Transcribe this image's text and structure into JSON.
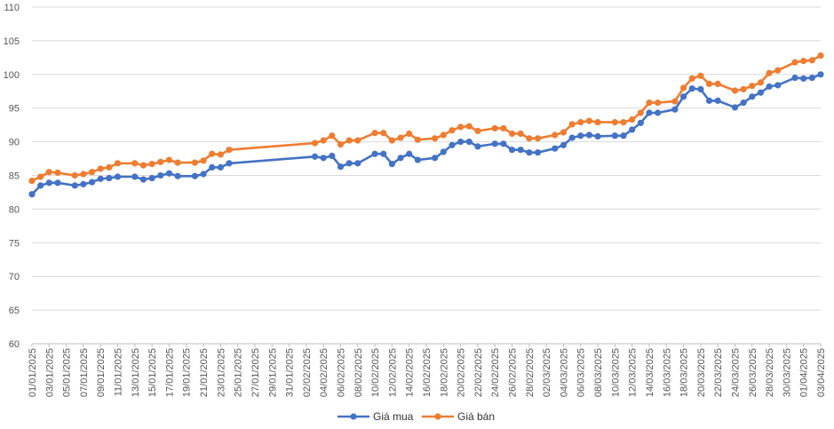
{
  "chart_data": {
    "type": "line",
    "title": "",
    "xlabel": "",
    "ylabel": "",
    "ylim": [
      60,
      110
    ],
    "y_ticks": [
      60,
      65,
      70,
      75,
      80,
      85,
      90,
      95,
      100,
      105,
      110
    ],
    "grid": true,
    "legend_position": "bottom-center",
    "x_tick_labels": [
      "01/01/2025",
      "03/01/2025",
      "05/01/2025",
      "07/01/2025",
      "09/01/2025",
      "11/01/2025",
      "13/01/2025",
      "15/01/2025",
      "17/01/2025",
      "19/01/2025",
      "21/01/2025",
      "23/01/2025",
      "25/01/2025",
      "27/01/2025",
      "29/01/2025",
      "31/01/2025",
      "02/02/2025",
      "04/02/2025",
      "06/02/2025",
      "08/02/2025",
      "10/02/2025",
      "12/02/2025",
      "14/02/2025",
      "16/02/2025",
      "18/02/2025",
      "20/02/2025",
      "22/02/2025",
      "24/02/2025",
      "26/02/2025",
      "28/02/2025",
      "02/03/2025",
      "04/03/2025",
      "06/03/2025",
      "08/03/2025",
      "10/03/2025",
      "12/03/2025",
      "14/03/2025",
      "16/03/2025",
      "18/03/2025",
      "20/03/2025",
      "22/03/2025",
      "24/03/2025",
      "26/03/2025",
      "28/03/2025",
      "30/03/2025",
      "01/04/2025",
      "03/04/2025"
    ],
    "x_day_count": 93,
    "series": [
      {
        "name": "Giá mua",
        "color": "#4472C4",
        "points": [
          [
            0,
            82.2
          ],
          [
            1,
            83.5
          ],
          [
            2,
            83.9
          ],
          [
            3,
            83.9
          ],
          [
            5,
            83.5
          ],
          [
            6,
            83.7
          ],
          [
            7,
            84.0
          ],
          [
            8,
            84.5
          ],
          [
            9,
            84.6
          ],
          [
            10,
            84.8
          ],
          [
            12,
            84.8
          ],
          [
            13,
            84.4
          ],
          [
            14,
            84.6
          ],
          [
            15,
            85.0
          ],
          [
            16,
            85.3
          ],
          [
            17,
            84.9
          ],
          [
            19,
            84.9
          ],
          [
            20,
            85.2
          ],
          [
            21,
            86.2
          ],
          [
            22,
            86.2
          ],
          [
            23,
            86.8
          ],
          [
            33,
            87.8
          ],
          [
            34,
            87.6
          ],
          [
            35,
            87.9
          ],
          [
            36,
            86.3
          ],
          [
            37,
            86.8
          ],
          [
            38,
            86.8
          ],
          [
            40,
            88.2
          ],
          [
            41,
            88.2
          ],
          [
            42,
            86.7
          ],
          [
            43,
            87.6
          ],
          [
            44,
            88.2
          ],
          [
            45,
            87.3
          ],
          [
            47,
            87.6
          ],
          [
            48,
            88.5
          ],
          [
            49,
            89.5
          ],
          [
            50,
            90.0
          ],
          [
            51,
            90.0
          ],
          [
            52,
            89.3
          ],
          [
            54,
            89.7
          ],
          [
            55,
            89.7
          ],
          [
            56,
            88.8
          ],
          [
            57,
            88.8
          ],
          [
            58,
            88.4
          ],
          [
            59,
            88.4
          ],
          [
            61,
            89.0
          ],
          [
            62,
            89.5
          ],
          [
            63,
            90.6
          ],
          [
            64,
            90.9
          ],
          [
            65,
            91.0
          ],
          [
            66,
            90.8
          ],
          [
            68,
            90.9
          ],
          [
            69,
            90.9
          ],
          [
            70,
            91.8
          ],
          [
            71,
            92.8
          ],
          [
            72,
            94.3
          ],
          [
            73,
            94.3
          ],
          [
            75,
            94.8
          ],
          [
            76,
            96.7
          ],
          [
            77,
            97.9
          ],
          [
            78,
            97.8
          ],
          [
            79,
            96.1
          ],
          [
            80,
            96.1
          ],
          [
            82,
            95.1
          ],
          [
            83,
            95.8
          ],
          [
            84,
            96.7
          ],
          [
            85,
            97.3
          ],
          [
            86,
            98.2
          ],
          [
            87,
            98.4
          ],
          [
            89,
            99.5
          ],
          [
            90,
            99.4
          ],
          [
            91,
            99.5
          ],
          [
            92,
            100.0
          ]
        ]
      },
      {
        "name": "Giá bán",
        "color": "#ED7D31",
        "points": [
          [
            0,
            84.2
          ],
          [
            1,
            84.8
          ],
          [
            2,
            85.5
          ],
          [
            3,
            85.4
          ],
          [
            5,
            85.0
          ],
          [
            6,
            85.2
          ],
          [
            7,
            85.5
          ],
          [
            8,
            86.0
          ],
          [
            9,
            86.2
          ],
          [
            10,
            86.8
          ],
          [
            12,
            86.8
          ],
          [
            13,
            86.5
          ],
          [
            14,
            86.7
          ],
          [
            15,
            87.0
          ],
          [
            16,
            87.3
          ],
          [
            17,
            86.9
          ],
          [
            19,
            86.9
          ],
          [
            20,
            87.2
          ],
          [
            21,
            88.2
          ],
          [
            22,
            88.1
          ],
          [
            23,
            88.8
          ],
          [
            33,
            89.8
          ],
          [
            34,
            90.2
          ],
          [
            35,
            90.9
          ],
          [
            36,
            89.6
          ],
          [
            37,
            90.2
          ],
          [
            38,
            90.2
          ],
          [
            40,
            91.3
          ],
          [
            41,
            91.3
          ],
          [
            42,
            90.2
          ],
          [
            43,
            90.6
          ],
          [
            44,
            91.2
          ],
          [
            45,
            90.3
          ],
          [
            47,
            90.5
          ],
          [
            48,
            91.0
          ],
          [
            49,
            91.7
          ],
          [
            50,
            92.2
          ],
          [
            51,
            92.3
          ],
          [
            52,
            91.6
          ],
          [
            54,
            92.0
          ],
          [
            55,
            92.0
          ],
          [
            56,
            91.2
          ],
          [
            57,
            91.2
          ],
          [
            58,
            90.5
          ],
          [
            59,
            90.5
          ],
          [
            61,
            91.0
          ],
          [
            62,
            91.4
          ],
          [
            63,
            92.6
          ],
          [
            64,
            92.9
          ],
          [
            65,
            93.1
          ],
          [
            66,
            92.9
          ],
          [
            68,
            92.9
          ],
          [
            69,
            92.9
          ],
          [
            70,
            93.3
          ],
          [
            71,
            94.3
          ],
          [
            72,
            95.8
          ],
          [
            73,
            95.8
          ],
          [
            75,
            96.0
          ],
          [
            76,
            98.0
          ],
          [
            77,
            99.4
          ],
          [
            78,
            99.8
          ],
          [
            79,
            98.6
          ],
          [
            80,
            98.6
          ],
          [
            82,
            97.6
          ],
          [
            83,
            97.8
          ],
          [
            84,
            98.3
          ],
          [
            85,
            98.8
          ],
          [
            86,
            100.2
          ],
          [
            87,
            100.6
          ],
          [
            89,
            101.8
          ],
          [
            90,
            102.0
          ],
          [
            91,
            102.1
          ],
          [
            92,
            102.8
          ]
        ]
      }
    ]
  }
}
